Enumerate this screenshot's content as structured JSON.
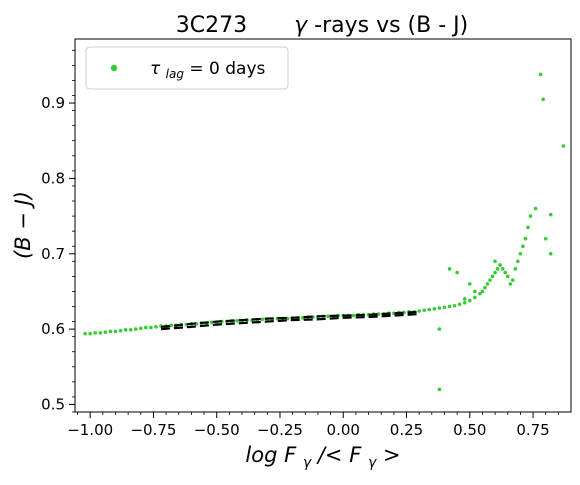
{
  "chart_data": {
    "type": "scatter",
    "title": {
      "source": "3C273",
      "symbol": "γ",
      "rest": "-rays vs (B - J)"
    },
    "xlabel": {
      "part1": "log F",
      "sub1": "γ",
      "part2": "/< F",
      "sub2": "γ",
      "part3": " >"
    },
    "ylabel": {
      "text": "(B − J)"
    },
    "xlim": [
      -1.06,
      0.9
    ],
    "ylim": [
      0.49,
      0.985
    ],
    "xticks": [
      -1.0,
      -0.75,
      -0.5,
      -0.25,
      0.0,
      0.25,
      0.5,
      0.75
    ],
    "xtick_labels": [
      "−1.00",
      "−0.75",
      "−0.50",
      "−0.25",
      "0.00",
      "0.25",
      "0.50",
      "0.75"
    ],
    "yticks": [
      0.5,
      0.6,
      0.7,
      0.8,
      0.9
    ],
    "ytick_labels": [
      "0.5",
      "0.6",
      "0.7",
      "0.8",
      "0.9"
    ],
    "grid": false,
    "legend": {
      "placement": "top-left",
      "entry": {
        "tau": "τ",
        "sub": "lag",
        "rest": " = 0  days"
      }
    },
    "colors": {
      "points": "#33cc33",
      "fit": "#000000"
    },
    "series": [
      {
        "kind": "points",
        "x": [
          -1.02,
          -1.0,
          -0.98,
          -0.96,
          -0.94,
          -0.92,
          -0.9,
          -0.88,
          -0.86,
          -0.84,
          -0.82,
          -0.8,
          -0.78,
          -0.76,
          -0.74,
          -0.72,
          -0.7,
          -0.68,
          -0.66,
          -0.64,
          -0.62,
          -0.6,
          -0.58,
          -0.56,
          -0.54,
          -0.52,
          -0.5,
          -0.48,
          -0.46,
          -0.44,
          -0.42,
          -0.4,
          -0.38,
          -0.36,
          -0.34,
          -0.32,
          -0.3,
          -0.28,
          -0.26,
          -0.24,
          -0.22,
          -0.2,
          -0.18,
          -0.16,
          -0.14,
          -0.12,
          -0.1,
          -0.08,
          -0.06,
          -0.04,
          -0.02,
          0.0,
          0.02,
          0.04,
          0.06,
          0.08,
          0.1,
          0.12,
          0.14,
          0.16,
          0.18,
          0.2,
          0.22,
          0.24,
          0.26,
          0.28,
          0.3,
          0.32,
          0.34,
          0.36,
          0.38,
          0.4,
          0.42,
          0.44,
          0.46,
          0.48,
          0.5,
          0.52,
          0.54,
          0.56,
          0.57,
          0.58,
          0.59,
          0.6,
          0.61,
          0.62,
          0.63,
          0.64,
          0.65,
          0.66,
          0.67,
          0.68,
          0.69,
          0.7,
          0.71,
          0.72,
          0.73,
          0.74,
          0.76,
          0.8,
          0.82,
          0.79,
          0.78,
          0.87,
          0.82,
          0.38,
          0.38,
          0.42,
          0.45,
          0.5,
          0.55,
          0.6,
          0.62,
          0.48,
          0.52
        ],
        "y": [
          0.594,
          0.594,
          0.595,
          0.595,
          0.596,
          0.597,
          0.597,
          0.598,
          0.599,
          0.599,
          0.6,
          0.601,
          0.602,
          0.602,
          0.603,
          0.604,
          0.604,
          0.605,
          0.605,
          0.606,
          0.606,
          0.607,
          0.607,
          0.608,
          0.608,
          0.609,
          0.609,
          0.61,
          0.61,
          0.611,
          0.611,
          0.611,
          0.612,
          0.612,
          0.612,
          0.613,
          0.613,
          0.613,
          0.614,
          0.614,
          0.614,
          0.615,
          0.615,
          0.615,
          0.616,
          0.616,
          0.616,
          0.617,
          0.617,
          0.617,
          0.618,
          0.618,
          0.618,
          0.618,
          0.619,
          0.619,
          0.619,
          0.62,
          0.62,
          0.62,
          0.621,
          0.621,
          0.622,
          0.622,
          0.623,
          0.623,
          0.624,
          0.625,
          0.626,
          0.627,
          0.628,
          0.629,
          0.63,
          0.631,
          0.633,
          0.635,
          0.638,
          0.642,
          0.647,
          0.655,
          0.66,
          0.665,
          0.67,
          0.675,
          0.68,
          0.685,
          0.68,
          0.675,
          0.67,
          0.66,
          0.665,
          0.68,
          0.69,
          0.7,
          0.71,
          0.72,
          0.735,
          0.75,
          0.76,
          0.72,
          0.7,
          0.905,
          0.938,
          0.843,
          0.752,
          0.52,
          0.6,
          0.68,
          0.675,
          0.66,
          0.65,
          0.69,
          0.685,
          0.64,
          0.65
        ]
      },
      {
        "kind": "fit",
        "style": "dashed",
        "x": [
          -0.72,
          -0.6,
          -0.5,
          -0.4,
          -0.3,
          -0.2,
          -0.1,
          0.0,
          0.1,
          0.2,
          0.3
        ],
        "y_upper": [
          0.603,
          0.607,
          0.61,
          0.612,
          0.614,
          0.615,
          0.617,
          0.618,
          0.619,
          0.621,
          0.623
        ],
        "y_lower": [
          0.6,
          0.603,
          0.606,
          0.608,
          0.61,
          0.612,
          0.613,
          0.615,
          0.616,
          0.618,
          0.62
        ]
      }
    ]
  }
}
